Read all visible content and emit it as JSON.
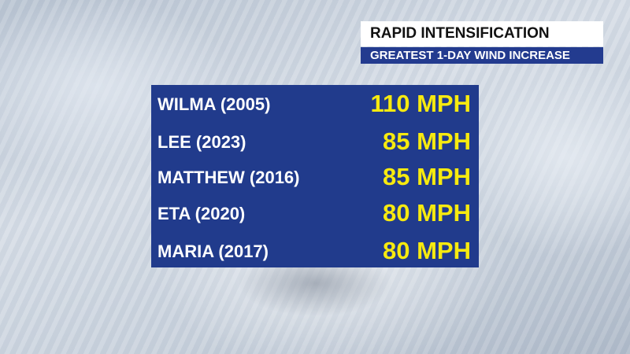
{
  "header": {
    "title": "RAPID INTENSIFICATION",
    "subtitle": "GREATEST 1-DAY WIND INCREASE"
  },
  "table": {
    "rows": [
      [
        "WILMA (2005)",
        "110 MPH"
      ],
      [
        "LEE (2023)",
        "85 MPH"
      ],
      [
        "MATTHEW (2016)",
        "85 MPH"
      ],
      [
        "ETA (2020)",
        "80 MPH"
      ],
      [
        "MARIA (2017)",
        "80 MPH"
      ]
    ]
  }
}
